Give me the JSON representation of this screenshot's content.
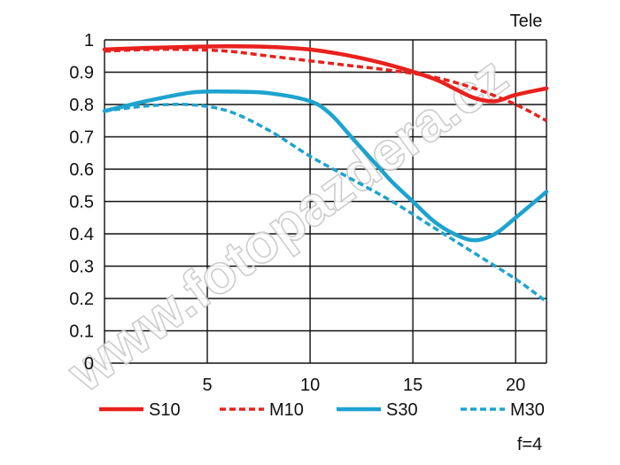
{
  "chart_data": {
    "type": "line",
    "corner_label": "Tele",
    "footer_label": "f=4",
    "watermark": "www.fotopazdera.cz",
    "xlim": [
      0,
      21.5
    ],
    "ylim": [
      0,
      1
    ],
    "x_ticks": [
      5,
      10,
      15,
      20
    ],
    "y_ticks": [
      0,
      0.1,
      0.2,
      0.3,
      0.4,
      0.5,
      0.6,
      0.7,
      0.8,
      0.9,
      1
    ],
    "y_tick_labels": [
      "0",
      "0.1",
      "0.2",
      "0.3",
      "0.4",
      "0.5",
      "0.6",
      "0.7",
      "0.8",
      "0.9",
      "1"
    ],
    "x_tick_labels": [
      "5",
      "10",
      "15",
      "20"
    ],
    "grid": true,
    "legend_position": "bottom",
    "series": [
      {
        "name": "S10",
        "color": "#e8211d",
        "dash": false,
        "x": [
          0,
          2,
          4,
          6,
          8,
          10,
          12,
          14,
          16,
          17,
          18,
          19,
          20,
          21.5
        ],
        "y": [
          0.97,
          0.975,
          0.978,
          0.98,
          0.978,
          0.97,
          0.95,
          0.92,
          0.88,
          0.85,
          0.82,
          0.81,
          0.83,
          0.85
        ]
      },
      {
        "name": "M10",
        "color": "#e8211d",
        "dash": true,
        "x": [
          0,
          2,
          4,
          6,
          8,
          10,
          12,
          14,
          16,
          18,
          20,
          21.5
        ],
        "y": [
          0.965,
          0.97,
          0.97,
          0.965,
          0.95,
          0.935,
          0.92,
          0.905,
          0.885,
          0.85,
          0.8,
          0.75
        ]
      },
      {
        "name": "S30",
        "color": "#1da3cf",
        "dash": false,
        "x": [
          0,
          2,
          4,
          5,
          6,
          8,
          10,
          11,
          12,
          13,
          14,
          15,
          16,
          17,
          18,
          19,
          20,
          21.5
        ],
        "y": [
          0.78,
          0.81,
          0.835,
          0.84,
          0.84,
          0.835,
          0.81,
          0.77,
          0.7,
          0.63,
          0.56,
          0.5,
          0.44,
          0.4,
          0.38,
          0.4,
          0.45,
          0.53
        ]
      },
      {
        "name": "M30",
        "color": "#1da3cf",
        "dash": true,
        "x": [
          0,
          2,
          4,
          6,
          8,
          10,
          12,
          14,
          16,
          18,
          20,
          21.5
        ],
        "y": [
          0.78,
          0.795,
          0.8,
          0.78,
          0.72,
          0.64,
          0.57,
          0.5,
          0.42,
          0.34,
          0.26,
          0.19
        ]
      }
    ]
  }
}
